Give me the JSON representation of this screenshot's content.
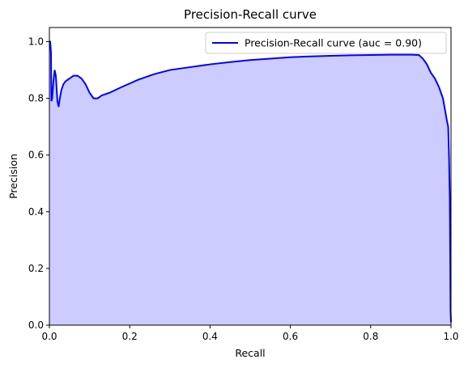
{
  "chart_data": {
    "type": "area",
    "title": "Precision-Recall curve",
    "xlabel": "Recall",
    "ylabel": "Precision",
    "xlim": [
      0,
      1
    ],
    "ylim": [
      0,
      1.05
    ],
    "x_ticks": [
      0.0,
      0.2,
      0.4,
      0.6,
      0.8,
      1.0
    ],
    "x_tick_labels": [
      "0.0",
      "0.2",
      "0.4",
      "0.6",
      "0.8",
      "1.0"
    ],
    "y_ticks": [
      0.0,
      0.2,
      0.4,
      0.6,
      0.8,
      1.0
    ],
    "y_tick_labels": [
      "0.0",
      "0.2",
      "0.4",
      "0.6",
      "0.8",
      "1.0"
    ],
    "grid": false,
    "legend_position": "top-right",
    "colors": {
      "line": "#0000ff",
      "fill": "#ccccff"
    },
    "series": [
      {
        "name": "Precision-Recall curve (auc = 0.90)",
        "x": [
          0.0,
          0.002,
          0.004,
          0.005,
          0.007,
          0.01,
          0.013,
          0.016,
          0.02,
          0.023,
          0.026,
          0.03,
          0.035,
          0.04,
          0.05,
          0.06,
          0.07,
          0.08,
          0.09,
          0.1,
          0.11,
          0.12,
          0.13,
          0.15,
          0.18,
          0.22,
          0.26,
          0.3,
          0.35,
          0.4,
          0.45,
          0.5,
          0.55,
          0.6,
          0.65,
          0.7,
          0.75,
          0.8,
          0.85,
          0.9,
          0.92,
          0.93,
          0.94,
          0.95,
          0.96,
          0.97,
          0.98,
          0.985,
          0.99,
          0.993,
          0.995,
          0.997,
          0.998,
          0.999,
          1.0
        ],
        "y": [
          1.0,
          1.0,
          0.96,
          0.79,
          0.8,
          0.86,
          0.9,
          0.88,
          0.79,
          0.77,
          0.8,
          0.83,
          0.85,
          0.86,
          0.87,
          0.88,
          0.88,
          0.87,
          0.85,
          0.82,
          0.8,
          0.8,
          0.81,
          0.82,
          0.84,
          0.865,
          0.885,
          0.9,
          0.91,
          0.92,
          0.928,
          0.935,
          0.94,
          0.945,
          0.948,
          0.95,
          0.952,
          0.953,
          0.954,
          0.954,
          0.953,
          0.94,
          0.92,
          0.89,
          0.87,
          0.84,
          0.8,
          0.76,
          0.72,
          0.7,
          0.6,
          0.45,
          0.25,
          0.05,
          0.01
        ]
      }
    ]
  }
}
